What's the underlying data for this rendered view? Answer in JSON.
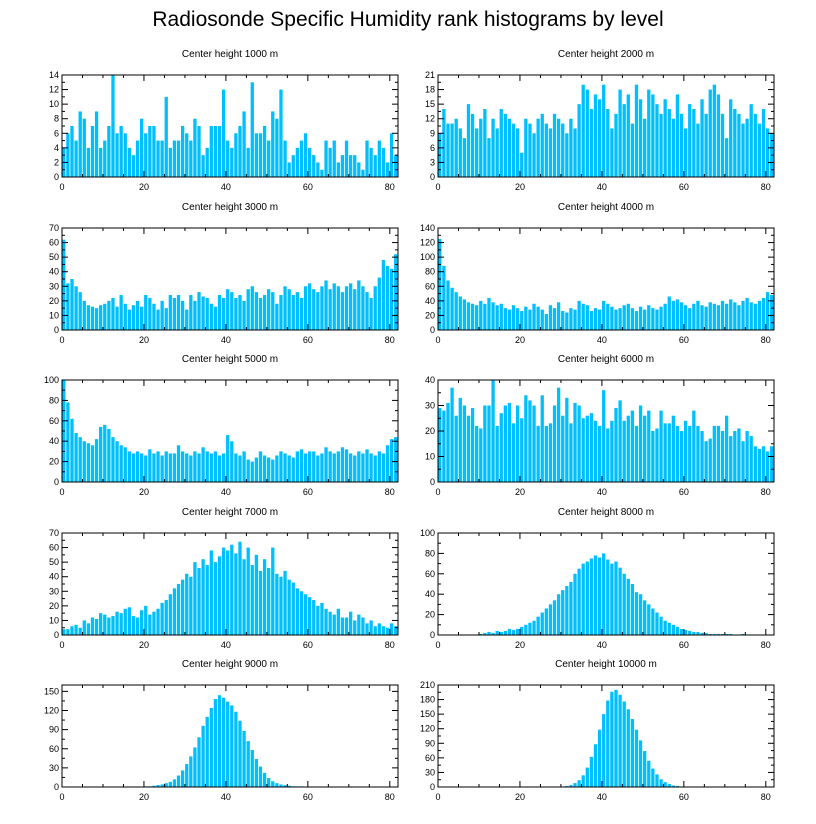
{
  "title": "Radiosonde Specific Humidity rank histograms by level",
  "chart_data": [
    {
      "type": "bar",
      "title": "Center height 1000 m",
      "xlim": [
        0,
        82
      ],
      "xticks": [
        0,
        20,
        40,
        60,
        80
      ],
      "ylim": [
        0,
        14
      ],
      "yticks": [
        0,
        2,
        4,
        6,
        8,
        10,
        12,
        14
      ],
      "values": [
        4,
        6,
        7,
        5,
        9,
        8,
        4,
        7,
        9,
        4,
        5,
        7,
        14,
        6,
        7,
        6,
        4,
        3,
        5,
        8,
        6,
        7,
        7,
        5,
        5,
        11,
        4,
        5,
        5,
        7,
        6,
        5,
        8,
        7,
        3,
        4,
        7,
        7,
        7,
        12,
        5,
        4,
        6,
        7,
        9,
        4,
        13,
        6,
        6,
        7,
        5,
        9,
        8,
        12,
        5,
        2,
        3,
        4,
        5,
        6,
        4,
        3,
        2,
        1,
        5,
        4,
        5,
        2,
        3,
        5,
        3,
        3,
        2,
        1,
        5,
        4,
        3,
        5,
        4,
        2,
        6,
        3
      ]
    },
    {
      "type": "bar",
      "title": "Center height 2000 m",
      "xlim": [
        0,
        82
      ],
      "xticks": [
        0,
        20,
        40,
        60,
        80
      ],
      "ylim": [
        0,
        21
      ],
      "yticks": [
        0,
        3,
        6,
        9,
        12,
        15,
        18,
        21
      ],
      "values": [
        9,
        14,
        11,
        11,
        12,
        10,
        8,
        15,
        13,
        10,
        12,
        14,
        8,
        12,
        10,
        14,
        13,
        12,
        11,
        10,
        5,
        12,
        11,
        9,
        12,
        13,
        11,
        10,
        13,
        12,
        11,
        9,
        12,
        10,
        15,
        19,
        18,
        14,
        17,
        16,
        19,
        14,
        10,
        13,
        18,
        15,
        17,
        11,
        19,
        16,
        12,
        18,
        17,
        15,
        13,
        16,
        14,
        12,
        17,
        13,
        10,
        15,
        14,
        11,
        16,
        13,
        18,
        19,
        17,
        13,
        8,
        16,
        14,
        13,
        11,
        12,
        15,
        13,
        11,
        14,
        10,
        9
      ]
    },
    {
      "type": "bar",
      "title": "Center height 3000 m",
      "xlim": [
        0,
        82
      ],
      "xticks": [
        0,
        20,
        40,
        60,
        80
      ],
      "ylim": [
        0,
        70
      ],
      "yticks": [
        0,
        10,
        20,
        30,
        40,
        50,
        60,
        70
      ],
      "values": [
        62,
        32,
        35,
        30,
        26,
        20,
        17,
        16,
        15,
        17,
        18,
        20,
        22,
        16,
        24,
        18,
        14,
        17,
        20,
        16,
        24,
        22,
        18,
        14,
        20,
        15,
        24,
        22,
        24,
        20,
        14,
        24,
        20,
        26,
        23,
        22,
        18,
        16,
        24,
        22,
        28,
        26,
        22,
        24,
        20,
        28,
        30,
        26,
        22,
        24,
        28,
        26,
        18,
        24,
        30,
        28,
        24,
        26,
        22,
        30,
        32,
        28,
        26,
        30,
        34,
        28,
        32,
        30,
        26,
        30,
        32,
        28,
        34,
        30,
        26,
        22,
        30,
        36,
        48,
        44,
        42,
        52
      ]
    },
    {
      "type": "bar",
      "title": "Center height 4000 m",
      "xlim": [
        0,
        82
      ],
      "xticks": [
        0,
        20,
        40,
        60,
        80
      ],
      "ylim": [
        0,
        140
      ],
      "yticks": [
        0,
        20,
        40,
        60,
        80,
        100,
        120,
        140
      ],
      "values": [
        125,
        88,
        68,
        58,
        52,
        46,
        42,
        38,
        36,
        34,
        40,
        36,
        44,
        38,
        34,
        36,
        30,
        28,
        34,
        30,
        26,
        32,
        28,
        36,
        32,
        28,
        22,
        34,
        30,
        38,
        26,
        24,
        30,
        28,
        40,
        36,
        34,
        26,
        30,
        28,
        40,
        36,
        32,
        28,
        30,
        34,
        36,
        30,
        26,
        32,
        28,
        34,
        30,
        28,
        32,
        36,
        46,
        40,
        42,
        38,
        34,
        30,
        36,
        40,
        34,
        32,
        38,
        36,
        34,
        40,
        36,
        42,
        38,
        34,
        40,
        44,
        38,
        36,
        40,
        44,
        52,
        48
      ]
    },
    {
      "type": "bar",
      "title": "Center height 5000 m",
      "xlim": [
        0,
        82
      ],
      "xticks": [
        0,
        20,
        40,
        60,
        80
      ],
      "ylim": [
        0,
        100
      ],
      "yticks": [
        0,
        20,
        40,
        60,
        80,
        100
      ],
      "values": [
        100,
        78,
        62,
        48,
        44,
        40,
        38,
        36,
        42,
        54,
        56,
        52,
        44,
        40,
        36,
        34,
        30,
        28,
        30,
        28,
        26,
        32,
        28,
        30,
        26,
        30,
        28,
        28,
        36,
        30,
        28,
        26,
        30,
        28,
        34,
        30,
        28,
        30,
        26,
        28,
        46,
        40,
        28,
        26,
        30,
        22,
        20,
        24,
        30,
        26,
        24,
        22,
        26,
        30,
        28,
        26,
        24,
        30,
        32,
        28,
        30,
        30,
        26,
        28,
        34,
        30,
        28,
        30,
        34,
        32,
        28,
        26,
        30,
        28,
        32,
        28,
        26,
        30,
        28,
        36,
        42,
        44
      ]
    },
    {
      "type": "bar",
      "title": "Center height 6000 m",
      "xlim": [
        0,
        82
      ],
      "xticks": [
        0,
        20,
        40,
        60,
        80
      ],
      "ylim": [
        0,
        40
      ],
      "yticks": [
        0,
        10,
        20,
        30,
        40
      ],
      "values": [
        29,
        28,
        31,
        37,
        26,
        33,
        30,
        26,
        29,
        22,
        21,
        30,
        30,
        40,
        22,
        27,
        30,
        31,
        23,
        30,
        25,
        34,
        32,
        30,
        22,
        34,
        22,
        23,
        30,
        37,
        26,
        33,
        23,
        31,
        30,
        25,
        26,
        27,
        24,
        22,
        36,
        21,
        24,
        29,
        32,
        24,
        26,
        28,
        22,
        30,
        26,
        28,
        20,
        21,
        28,
        23,
        23,
        26,
        22,
        20,
        24,
        22,
        28,
        22,
        20,
        16,
        17,
        22,
        22,
        20,
        26,
        18,
        20,
        21,
        16,
        20,
        18,
        14,
        13,
        14,
        12,
        14
      ]
    },
    {
      "type": "bar",
      "title": "Center height 7000 m",
      "xlim": [
        0,
        82
      ],
      "xticks": [
        0,
        20,
        40,
        60,
        80
      ],
      "ylim": [
        0,
        70
      ],
      "yticks": [
        0,
        10,
        20,
        30,
        40,
        50,
        60,
        70
      ],
      "values": [
        4,
        4,
        6,
        7,
        5,
        10,
        8,
        12,
        11,
        15,
        14,
        12,
        13,
        16,
        15,
        18,
        19,
        13,
        12,
        17,
        20,
        14,
        16,
        18,
        22,
        24,
        28,
        32,
        35,
        38,
        42,
        40,
        50,
        46,
        52,
        48,
        58,
        50,
        54,
        60,
        58,
        62,
        56,
        64,
        52,
        60,
        48,
        55,
        44,
        52,
        46,
        60,
        42,
        40,
        44,
        38,
        36,
        32,
        30,
        28,
        26,
        24,
        20,
        22,
        18,
        16,
        14,
        18,
        12,
        12,
        16,
        10,
        14,
        12,
        8,
        10,
        6,
        8,
        6,
        5,
        8,
        6
      ]
    },
    {
      "type": "bar",
      "title": "Center height 8000 m",
      "xlim": [
        0,
        82
      ],
      "xticks": [
        0,
        20,
        40,
        60,
        80
      ],
      "ylim": [
        0,
        100
      ],
      "yticks": [
        0,
        20,
        40,
        60,
        80,
        100
      ],
      "values": [
        0,
        0,
        0,
        0,
        0,
        0,
        0,
        0,
        0,
        0,
        1,
        2,
        3,
        2,
        4,
        3,
        4,
        6,
        5,
        6,
        8,
        10,
        12,
        14,
        18,
        22,
        26,
        30,
        34,
        40,
        44,
        48,
        52,
        60,
        65,
        70,
        72,
        75,
        78,
        76,
        80,
        74,
        70,
        72,
        66,
        60,
        55,
        50,
        42,
        40,
        34,
        30,
        26,
        22,
        18,
        14,
        12,
        10,
        8,
        6,
        5,
        4,
        3,
        3,
        2,
        2,
        1,
        1,
        1,
        1,
        1,
        1,
        0,
        0,
        1,
        0,
        0,
        0,
        0,
        0,
        0,
        0
      ]
    },
    {
      "type": "bar",
      "title": "Center height 9000 m",
      "xlim": [
        0,
        82
      ],
      "xticks": [
        0,
        20,
        40,
        60,
        80
      ],
      "ylim": [
        0,
        160
      ],
      "yticks": [
        0,
        30,
        60,
        90,
        120,
        150
      ],
      "values": [
        0,
        0,
        0,
        0,
        0,
        0,
        0,
        0,
        0,
        0,
        0,
        0,
        0,
        0,
        0,
        0,
        0,
        0,
        0,
        0,
        1,
        1,
        2,
        3,
        4,
        6,
        8,
        12,
        18,
        26,
        36,
        48,
        62,
        78,
        96,
        110,
        124,
        138,
        144,
        140,
        134,
        128,
        118,
        104,
        88,
        72,
        58,
        44,
        32,
        22,
        14,
        9,
        6,
        4,
        3,
        2,
        1,
        1,
        1,
        0,
        0,
        0,
        0,
        0,
        0,
        0,
        0,
        0,
        0,
        0,
        0,
        0,
        0,
        0,
        0,
        0,
        0,
        0,
        0,
        0,
        0,
        0
      ]
    },
    {
      "type": "bar",
      "title": "Center height 10000 m",
      "xlim": [
        0,
        82
      ],
      "xticks": [
        0,
        20,
        40,
        60,
        80
      ],
      "ylim": [
        0,
        210
      ],
      "yticks": [
        0,
        30,
        60,
        90,
        120,
        150,
        180,
        210
      ],
      "values": [
        0,
        0,
        0,
        0,
        0,
        0,
        0,
        0,
        0,
        0,
        0,
        0,
        0,
        0,
        0,
        0,
        0,
        0,
        0,
        0,
        0,
        0,
        0,
        0,
        0,
        0,
        0,
        0,
        0,
        0,
        1,
        2,
        4,
        8,
        14,
        24,
        40,
        62,
        88,
        118,
        150,
        178,
        196,
        200,
        190,
        176,
        160,
        140,
        118,
        96,
        74,
        54,
        38,
        26,
        16,
        10,
        6,
        3,
        2,
        1,
        1,
        0,
        0,
        0,
        0,
        0,
        0,
        0,
        0,
        0,
        0,
        0,
        0,
        0,
        0,
        0,
        0,
        0,
        0,
        0,
        0,
        0
      ]
    }
  ]
}
